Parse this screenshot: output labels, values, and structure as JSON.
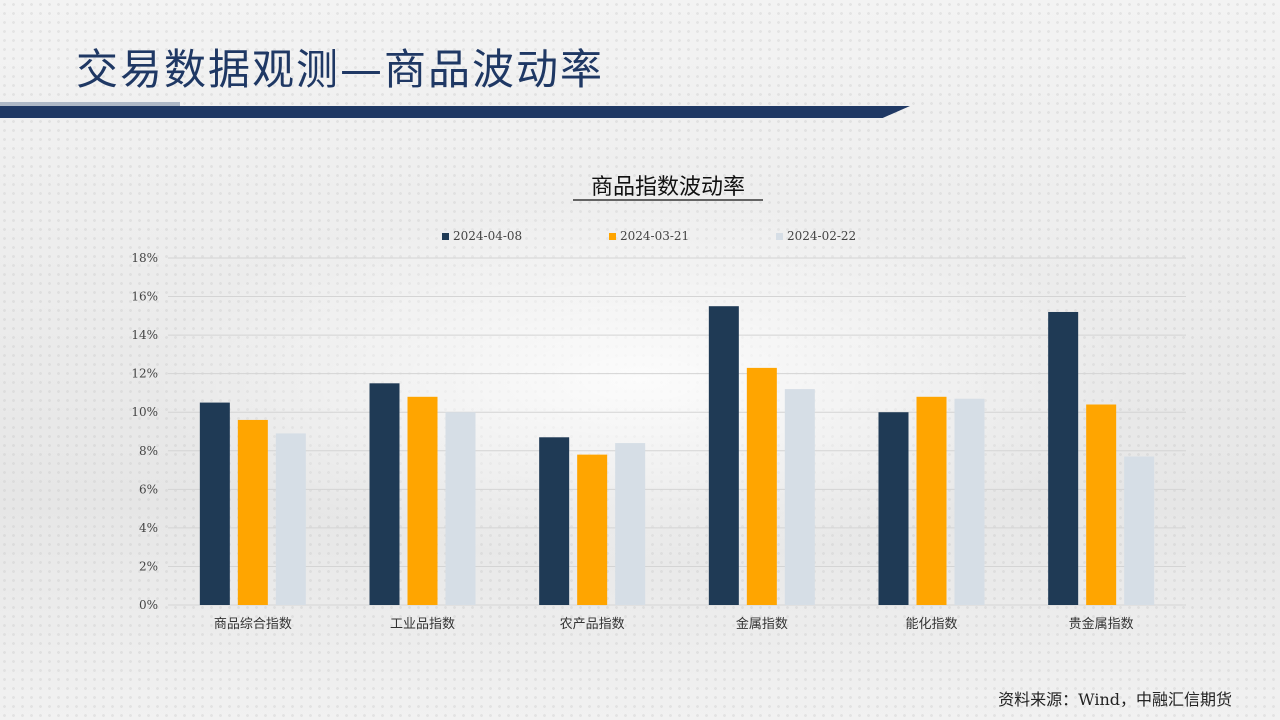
{
  "page": {
    "title": "交易数据观测—商品波动率",
    "source": "资料来源：Wind，中融汇信期货"
  },
  "colors": {
    "title": "#1f3864",
    "series": [
      "#1f3a55",
      "#ffa500",
      "#d6dee6"
    ]
  },
  "chart_data": {
    "type": "bar",
    "title": "商品指数波动率",
    "xlabel": "",
    "ylabel": "",
    "ylim": [
      0,
      18
    ],
    "y_ticks": [
      "0%",
      "2%",
      "4%",
      "6%",
      "8%",
      "10%",
      "12%",
      "14%",
      "16%",
      "18%"
    ],
    "grid": true,
    "legend": "top-center",
    "categories": [
      "商品综合指数",
      "工业品指数",
      "农产品指数",
      "金属指数",
      "能化指数",
      "贵金属指数"
    ],
    "series": [
      {
        "name": "2024-04-08",
        "values": [
          10.5,
          11.5,
          8.7,
          15.5,
          10.0,
          15.2
        ]
      },
      {
        "name": "2024-03-21",
        "values": [
          9.6,
          10.8,
          7.8,
          12.3,
          10.8,
          10.4
        ]
      },
      {
        "name": "2024-02-22",
        "values": [
          8.9,
          10.0,
          8.4,
          11.2,
          10.7,
          7.7
        ]
      }
    ]
  }
}
